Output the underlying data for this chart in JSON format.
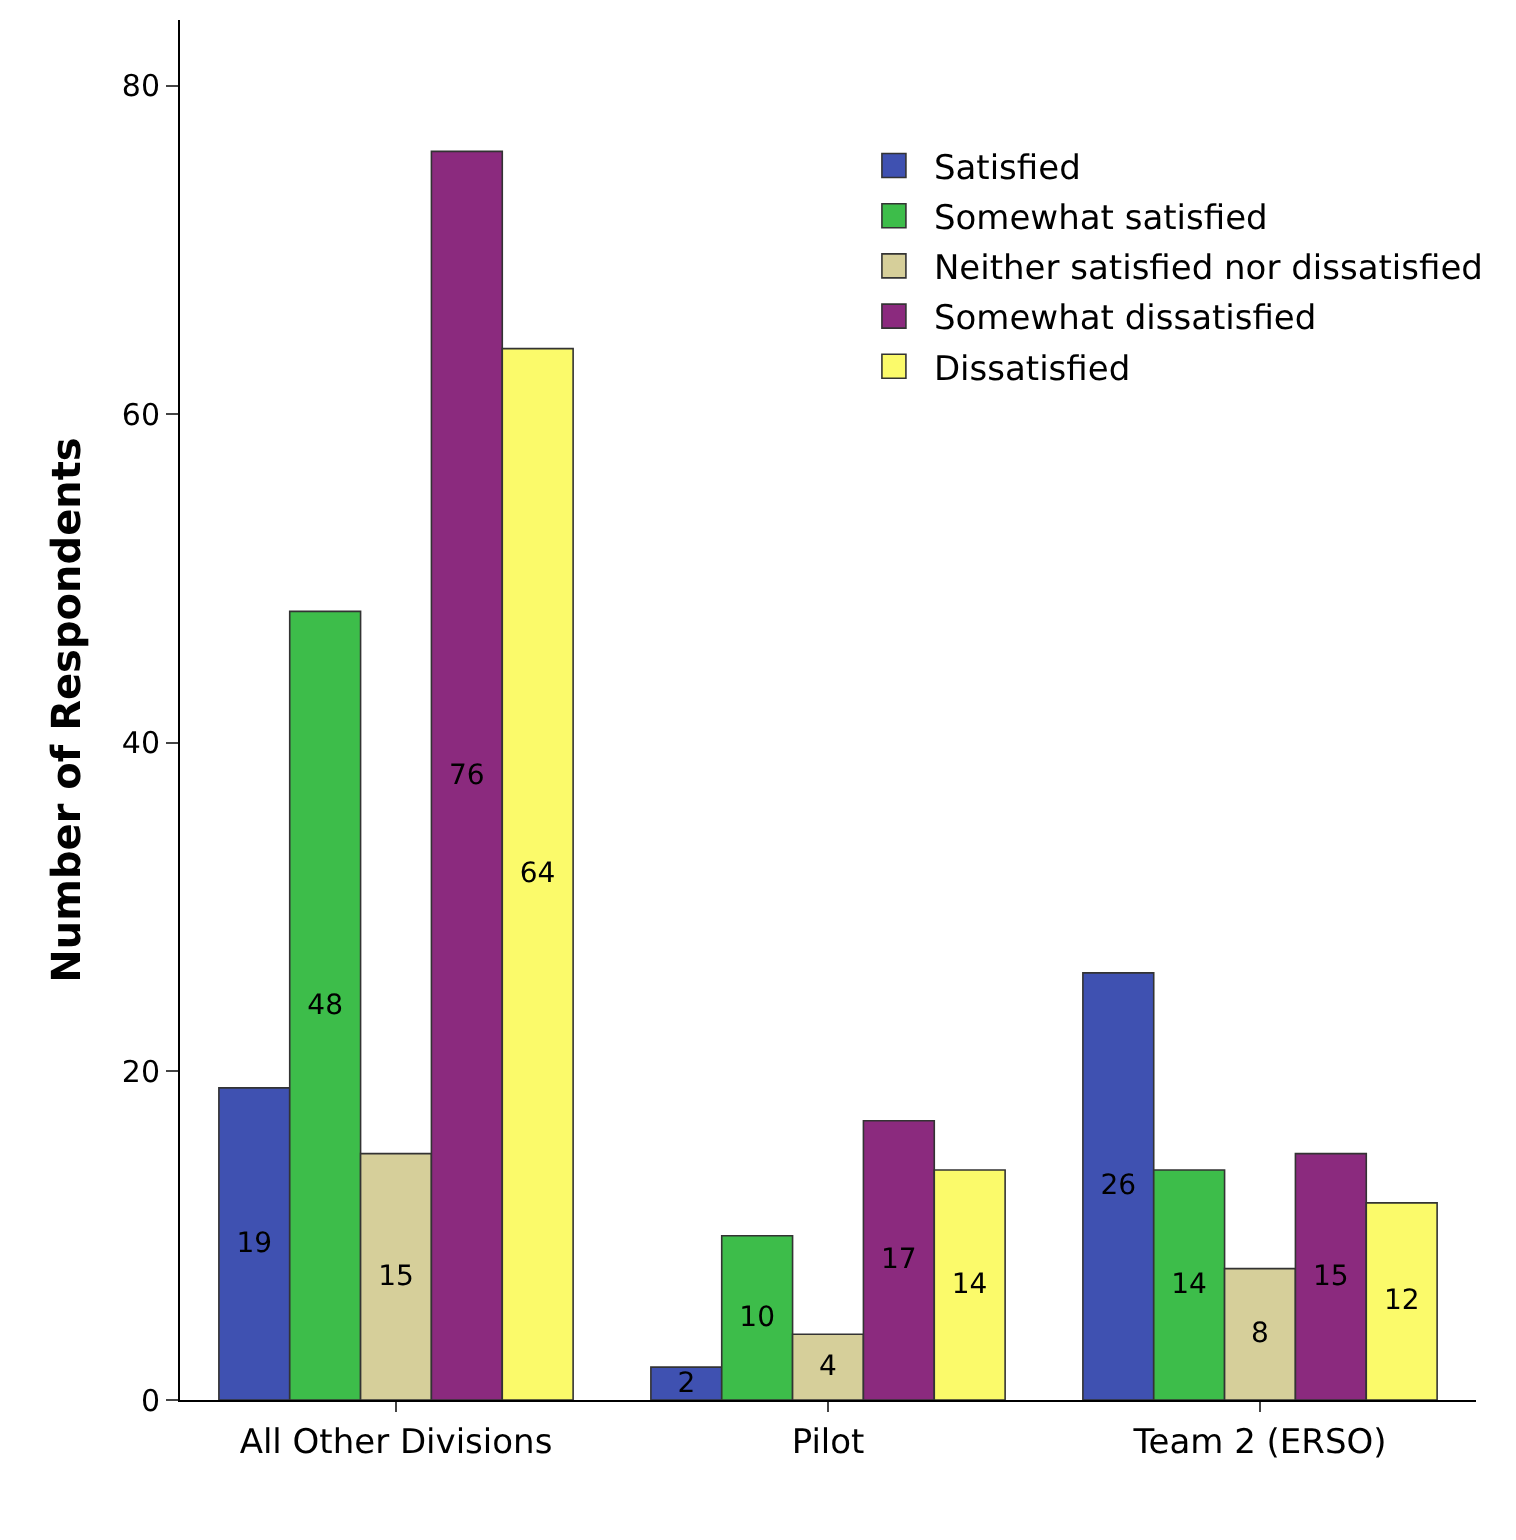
{
  "chart_data": {
    "type": "bar",
    "ylabel": "Number of Respondents",
    "categories": [
      "All Other Divisions",
      "Pilot",
      "Team 2 (ERSO)"
    ],
    "series": [
      {
        "name": "Satisfied",
        "color": "#3f51b1",
        "values": [
          19,
          2,
          26
        ]
      },
      {
        "name": "Somewhat satisfied",
        "color": "#3dbd4a",
        "values": [
          48,
          10,
          14
        ]
      },
      {
        "name": "Neither satisfied nor dissatisfied",
        "color": "#d6cf9a",
        "values": [
          15,
          4,
          8
        ]
      },
      {
        "name": "Somewhat dissatisfied",
        "color": "#8b2a7e",
        "values": [
          76,
          17,
          15
        ]
      },
      {
        "name": "Dissatisfied",
        "color": "#fbfa6a",
        "values": [
          64,
          14,
          12
        ]
      }
    ],
    "ylim": [
      0,
      84
    ],
    "yticks": [
      0,
      20,
      40,
      60,
      80
    ],
    "grid": false,
    "legend": "top right",
    "data_labels": true
  }
}
